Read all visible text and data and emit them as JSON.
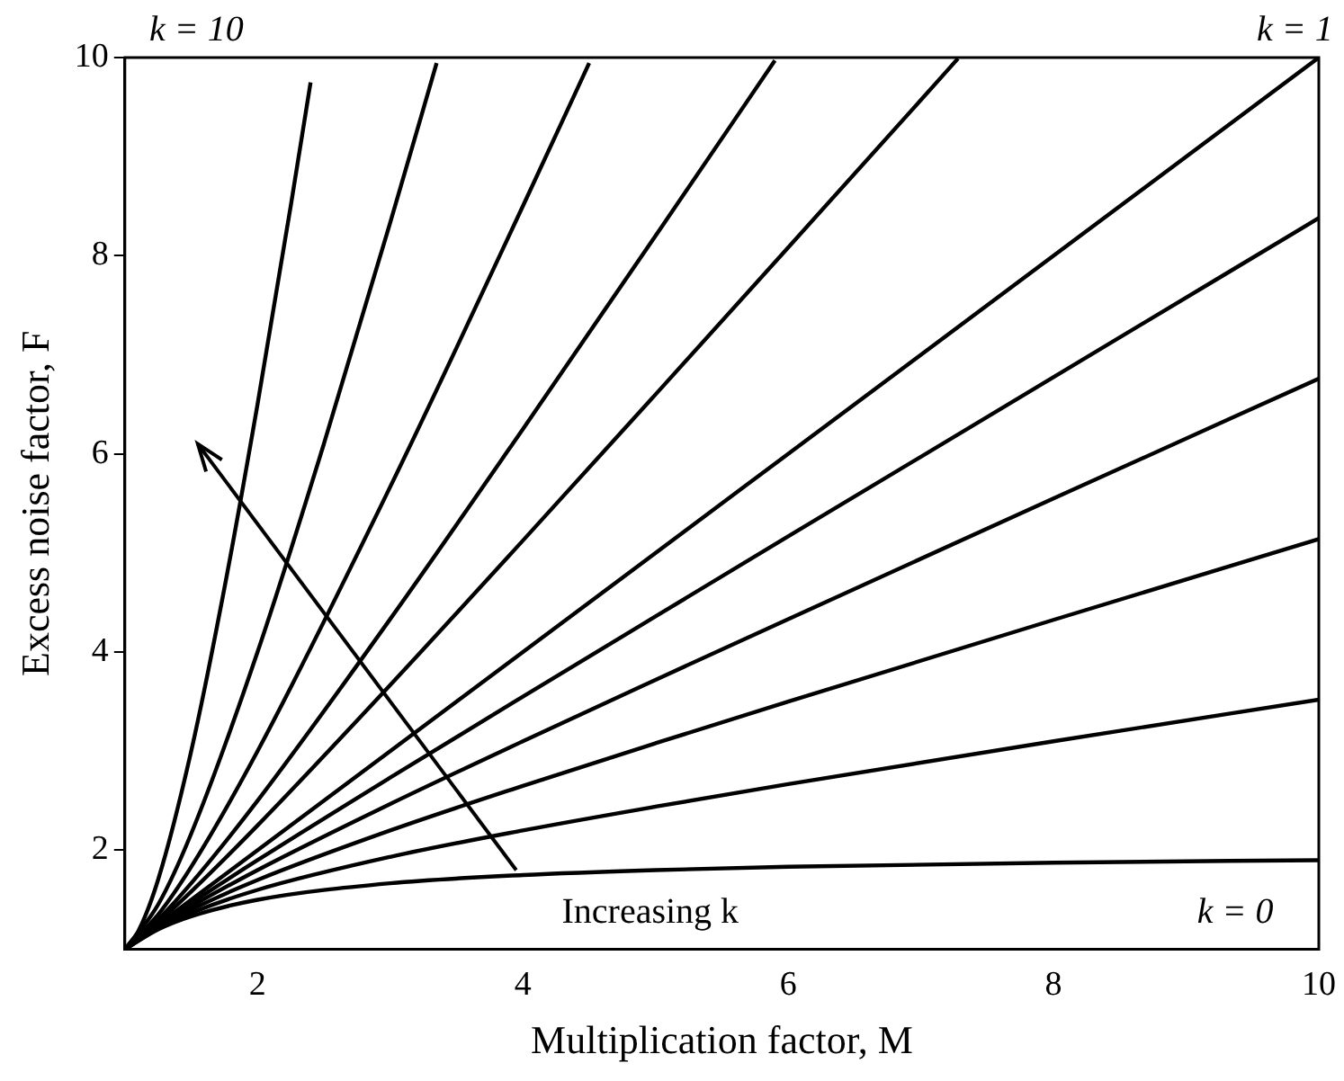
{
  "chart_data": {
    "type": "line",
    "xlabel": "Multiplication factor, M",
    "ylabel": "Excess noise factor, F",
    "xlim": [
      1,
      10
    ],
    "xticks": [
      2,
      4,
      6,
      8,
      10
    ],
    "ylim": [
      1,
      10
    ],
    "yticks": [
      2,
      4,
      6,
      8,
      10
    ],
    "grid": false,
    "legend": false,
    "marker": "none",
    "line_style": "solid",
    "annotations": [
      "k = 10",
      "k = 1",
      "k = 0",
      "Increasing k"
    ],
    "series": [
      {
        "color": "#000000",
        "x": [
          1,
          1.25,
          1.5,
          2,
          3,
          4,
          5,
          6,
          8,
          10
        ],
        "values": [
          1,
          1.2,
          1.333,
          1.5,
          1.667,
          1.75,
          1.8,
          1.833,
          1.875,
          1.9
        ]
      },
      {
        "color": "#000000",
        "x": [
          1,
          1.25,
          1.5,
          2,
          3,
          4,
          5,
          6,
          8,
          10
        ],
        "values": [
          1,
          1.21,
          1.367,
          1.6,
          1.933,
          2.2,
          2.44,
          2.667,
          3.1,
          3.52
        ]
      },
      {
        "color": "#000000",
        "x": [
          1,
          1.25,
          1.5,
          2,
          3,
          4,
          5,
          6,
          8,
          10
        ],
        "values": [
          1,
          1.22,
          1.4,
          1.7,
          2.2,
          2.65,
          3.08,
          3.5,
          4.325,
          5.14
        ]
      },
      {
        "color": "#000000",
        "x": [
          1,
          1.25,
          1.5,
          2,
          3,
          4,
          5,
          6,
          8,
          10
        ],
        "values": [
          1,
          1.23,
          1.433,
          1.8,
          2.467,
          3.1,
          3.72,
          4.333,
          5.55,
          6.76
        ]
      },
      {
        "color": "#000000",
        "x": [
          1,
          1.25,
          1.5,
          2,
          3,
          4,
          5,
          6,
          8,
          10
        ],
        "values": [
          1,
          1.24,
          1.467,
          1.9,
          2.733,
          3.55,
          4.36,
          5.167,
          6.775,
          8.38
        ]
      },
      {
        "color": "#000000",
        "x": [
          1,
          10
        ],
        "values": [
          1,
          10
        ]
      },
      {
        "color": "#000000",
        "x": [
          1,
          1.25,
          1.5,
          2,
          3,
          4,
          5,
          6,
          7,
          7.28
        ],
        "values": [
          1,
          1.275,
          1.583,
          2.25,
          3.667,
          5.125,
          6.6,
          8.083,
          9.571,
          9.99
        ]
      },
      {
        "color": "#000000",
        "x": [
          1,
          1.25,
          1.5,
          2,
          3,
          4,
          5,
          5.9
        ],
        "values": [
          1,
          1.3,
          1.667,
          2.5,
          4.333,
          6.25,
          8.2,
          9.97
        ]
      },
      {
        "color": "#000000",
        "x": [
          1,
          1.25,
          1.5,
          2,
          3,
          4,
          4.5
        ],
        "values": [
          1,
          1.35,
          1.833,
          3,
          5.667,
          8.5,
          9.944
        ]
      },
      {
        "color": "#000000",
        "x": [
          1,
          1.25,
          1.5,
          2,
          2.5,
          3,
          3.35
        ],
        "values": [
          1,
          1.45,
          2.167,
          4,
          6.1,
          8.333,
          9.944
        ]
      },
      {
        "color": "#000000",
        "x": [
          1,
          1.1,
          1.25,
          1.5,
          1.75,
          2,
          2.25,
          2.4
        ],
        "values": [
          1,
          1.18,
          1.7,
          3,
          4.643,
          6.5,
          8.5,
          9.75
        ]
      }
    ]
  }
}
